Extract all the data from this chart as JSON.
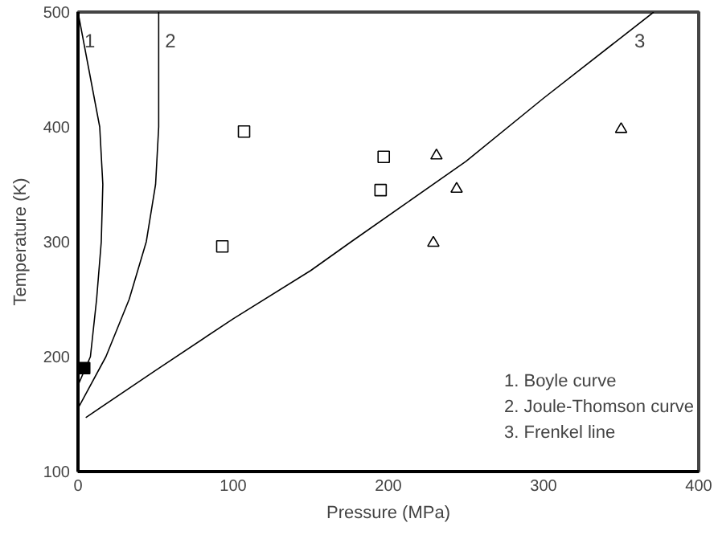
{
  "chart_data": {
    "type": "scatter",
    "xlabel": "Pressure (MPa)",
    "ylabel": "Temperature (K)",
    "xlim": [
      0,
      400
    ],
    "xticks": [
      0,
      100,
      200,
      300,
      400
    ],
    "ylim": [
      100,
      500
    ],
    "yticks": [
      100,
      200,
      300,
      400,
      500
    ],
    "grid": false,
    "series": [
      {
        "name": "1",
        "type": "line",
        "color": "#000000",
        "x": [
          0,
          8,
          12,
          15,
          16,
          14,
          7,
          0
        ],
        "values": [
          175,
          200,
          250,
          300,
          350,
          400,
          450,
          500
        ]
      },
      {
        "name": "2",
        "type": "line",
        "color": "#000000",
        "x": [
          0,
          18,
          33,
          44,
          50,
          52,
          52,
          52
        ],
        "values": [
          155,
          200,
          250,
          300,
          350,
          400,
          450,
          500
        ]
      },
      {
        "name": "3",
        "type": "line",
        "color": "#000000",
        "x": [
          5,
          50,
          100,
          150,
          176,
          250,
          300,
          371
        ],
        "values": [
          147,
          188,
          233,
          275,
          300,
          370,
          425,
          500
        ]
      },
      {
        "marker": "square",
        "color": "#ffffff",
        "x": [
          107,
          93,
          197,
          195
        ],
        "values": [
          396,
          296,
          374,
          345
        ]
      },
      {
        "marker": "square",
        "color": "#000000",
        "x": [
          4
        ],
        "values": [
          190
        ]
      },
      {
        "marker": "triangle",
        "color": "#ffffff",
        "x": [
          231,
          244,
          229,
          350
        ],
        "values": [
          375,
          346,
          299,
          398
        ]
      }
    ],
    "annotations": [
      "1. Boyle curve",
      "2. Joule-Thomson curve",
      "3. Frenkel line"
    ]
  }
}
